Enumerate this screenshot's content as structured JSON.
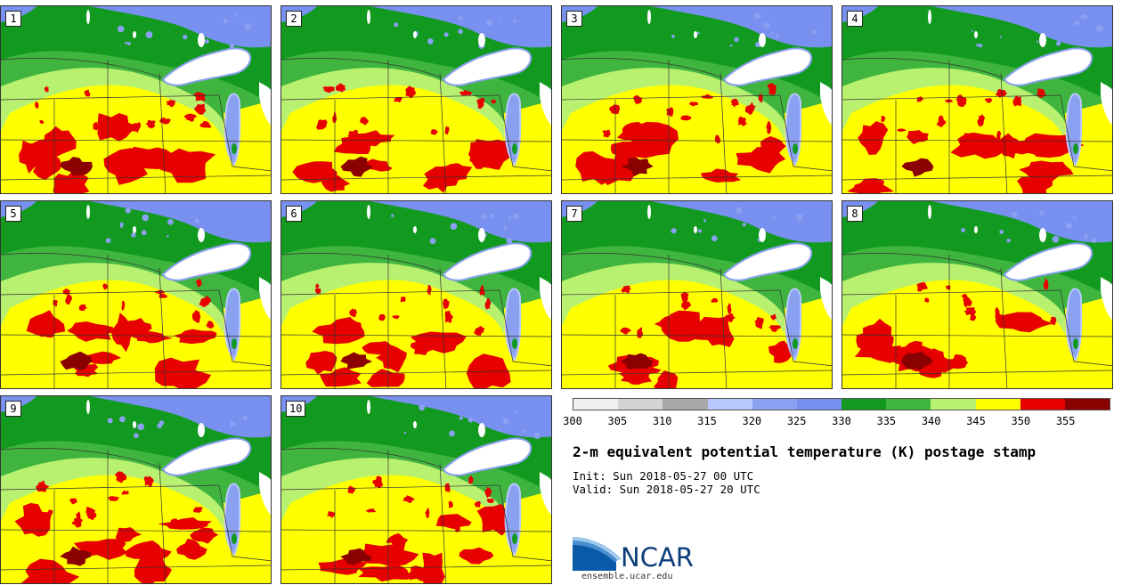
{
  "figure": {
    "title": "2-m equivalent potential temperature (K) postage stamp",
    "init_text": "Init: Sun 2018-05-27 00 UTC",
    "valid_text": "Valid: Sun 2018-05-27 20 UTC"
  },
  "panels": [
    {
      "label": "1"
    },
    {
      "label": "2"
    },
    {
      "label": "3"
    },
    {
      "label": "4"
    },
    {
      "label": "5"
    },
    {
      "label": "6"
    },
    {
      "label": "7"
    },
    {
      "label": "8"
    },
    {
      "label": "9"
    },
    {
      "label": "10"
    }
  ],
  "colorbar": {
    "ticks": [
      "300",
      "305",
      "310",
      "315",
      "320",
      "325",
      "330",
      "335",
      "340",
      "345",
      "350",
      "355"
    ],
    "colors": [
      "#f0f0f0",
      "#d4d4d4",
      "#a8a8a8",
      "#b8c8ff",
      "#8aa0f0",
      "#7890f0",
      "#129a20",
      "#3fb53f",
      "#b8f070",
      "#ffff00",
      "#e60000",
      "#8b0000"
    ]
  },
  "logo": {
    "name": "NCAR",
    "url": "ensemble.ucar.edu"
  }
}
